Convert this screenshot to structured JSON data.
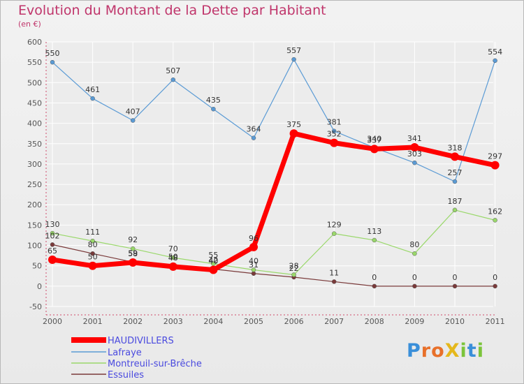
{
  "title": "Evolution du Montant de la Dette par Habitant",
  "unit": "(en €)",
  "logo": {
    "text": "ProXiti",
    "letters": [
      "P",
      "r",
      "o",
      "X",
      "i",
      "t",
      "i"
    ],
    "colors": [
      "#3a8fd9",
      "#e8702a",
      "#e8702a",
      "#e5b81c",
      "#7cc43b",
      "#3a8fd9",
      "#7cc43b"
    ]
  },
  "chart_data": {
    "type": "line",
    "title": "Evolution du Montant de la Dette par Habitant",
    "ylabel": "(en €)",
    "xlabel": "",
    "categories": [
      "2000",
      "2001",
      "2002",
      "2003",
      "2004",
      "2005",
      "2006",
      "2007",
      "2008",
      "2009",
      "2010",
      "2011"
    ],
    "ylim": [
      -50,
      600
    ],
    "yticks": [
      -50,
      0,
      50,
      100,
      150,
      200,
      250,
      300,
      350,
      400,
      450,
      500,
      550,
      600
    ],
    "grid": true,
    "legend": "bottom-left",
    "series": [
      {
        "name": "HAUDIVILLERS",
        "color": "#ff0000",
        "values": [
          65,
          50,
          58,
          48,
          40,
          96,
          375,
          352,
          337,
          341,
          318,
          297
        ],
        "labels": [
          "65",
          "50",
          "58",
          "48",
          "40",
          "96",
          "375",
          "352",
          "337",
          "341",
          "318",
          "297"
        ]
      },
      {
        "name": "Lafraye",
        "color": "#5b9bd5",
        "values": [
          550,
          461,
          407,
          507,
          435,
          364,
          557,
          381,
          340,
          303,
          257,
          554
        ],
        "labels": [
          "550",
          "461",
          "407",
          "507",
          "435",
          "364",
          "557",
          "381",
          "340",
          "303",
          "257",
          "554"
        ]
      },
      {
        "name": "Montreuil-sur-Brêche",
        "color": "#9ad86b",
        "values": [
          130,
          111,
          92,
          70,
          55,
          40,
          28,
          129,
          113,
          80,
          187,
          162
        ],
        "labels": [
          "130",
          "111",
          "92",
          "70",
          "55",
          "40",
          "28",
          "129",
          "113",
          "80",
          "187",
          "162"
        ]
      },
      {
        "name": "Essuiles",
        "color": "#7a3a3a",
        "values": [
          102,
          80,
          59,
          50,
          42,
          31,
          22,
          11,
          0,
          0,
          0,
          0
        ],
        "labels": [
          "102",
          "80",
          "59",
          "50",
          "42",
          "31",
          "22",
          "11",
          "0",
          "0",
          "0",
          "0"
        ]
      }
    ]
  }
}
